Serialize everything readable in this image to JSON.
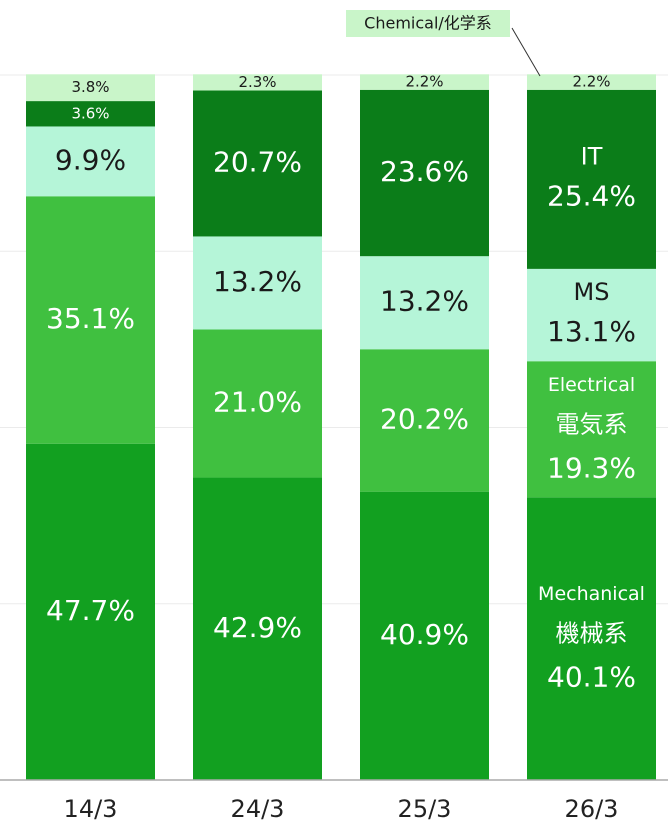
{
  "chart_data": {
    "type": "stacked_bar",
    "categories": [
      "14/3",
      "24/3",
      "25/3",
      "26/3"
    ],
    "ylim": [
      0,
      100
    ],
    "yticks": [
      0,
      25,
      50,
      75,
      100
    ],
    "grid": true,
    "series": [
      {
        "name": "Mechanical",
        "name_ja": "機械系",
        "color": "#12a020",
        "label_color": "#ffffff",
        "values": [
          47.7,
          42.9,
          40.9,
          40.1
        ],
        "value_labels": [
          "47.7%",
          "42.9%",
          "40.9%",
          "40.1%"
        ]
      },
      {
        "name": "Electrical",
        "name_ja": "電気系",
        "color": "#40c040",
        "label_color": "#ffffff",
        "values": [
          35.1,
          21.0,
          20.2,
          19.3
        ],
        "value_labels": [
          "35.1%",
          "21.0%",
          "20.2%",
          "19.3%"
        ]
      },
      {
        "name": "MS",
        "color": "#b5f5d8",
        "label_color": "#1a1a1a",
        "values": [
          9.9,
          13.2,
          13.2,
          13.1
        ],
        "value_labels": [
          "9.9%",
          "13.2%",
          "13.2%",
          "13.1%"
        ]
      },
      {
        "name": "IT",
        "color": "#0b7d19",
        "label_color": "#ffffff",
        "values": [
          3.6,
          20.7,
          23.6,
          25.4
        ],
        "value_labels": [
          "3.6%",
          "20.7%",
          "23.6%",
          "25.4%"
        ]
      },
      {
        "name": "Chemical/化学系",
        "color": "#c9f5c9",
        "label_color": "#1a1a1a",
        "values": [
          3.8,
          2.3,
          2.2,
          2.2
        ],
        "value_labels": [
          "3.8%",
          "2.3%",
          "2.2%",
          "2.2%"
        ]
      }
    ]
  }
}
